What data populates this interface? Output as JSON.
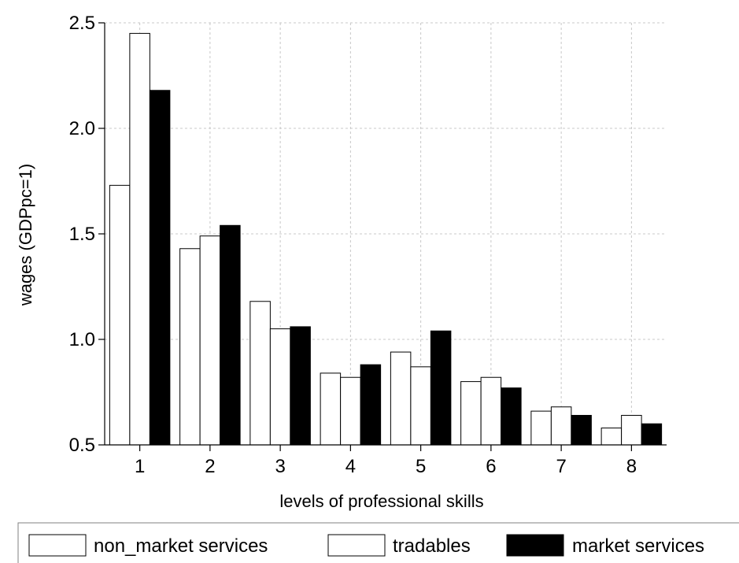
{
  "chart_data": {
    "type": "bar",
    "title": "",
    "xlabel": "levels of professional skills",
    "ylabel": "wages (GDPpc=1)",
    "categories": [
      "1",
      "2",
      "3",
      "4",
      "5",
      "6",
      "7",
      "8"
    ],
    "ylim": [
      0.5,
      2.5
    ],
    "yticks": [
      0.5,
      1.0,
      1.5,
      2.0,
      2.5
    ],
    "ytick_labels": [
      "0.5",
      "1.0",
      "1.5",
      "2.0",
      "2.5"
    ],
    "grid": true,
    "legend_position": "bottom",
    "series": [
      {
        "name": "non_market services",
        "color": "#ffffff",
        "values": [
          1.73,
          1.43,
          1.18,
          0.84,
          0.94,
          0.8,
          0.66,
          0.58
        ]
      },
      {
        "name": "tradables",
        "color": "#ffffff",
        "values": [
          2.45,
          1.49,
          1.05,
          0.82,
          0.87,
          0.82,
          0.68,
          0.64
        ]
      },
      {
        "name": "market services",
        "color": "#000000",
        "values": [
          2.18,
          1.54,
          1.06,
          0.88,
          1.04,
          0.77,
          0.64,
          0.6
        ]
      }
    ]
  }
}
